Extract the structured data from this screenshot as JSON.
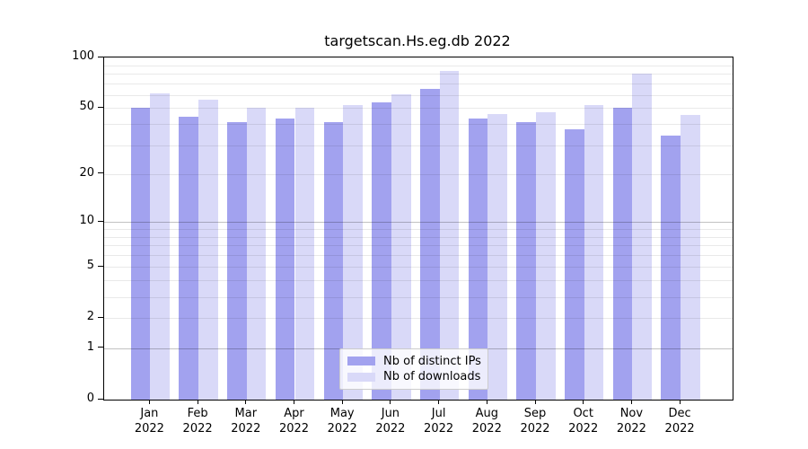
{
  "chart_data": {
    "type": "bar",
    "title": "targetscan.Hs.eg.db 2022",
    "yscale": "log1p",
    "ylim": [
      0,
      100
    ],
    "grid": true,
    "legend_position": "bottom-center",
    "categories": [
      "Jan",
      "Feb",
      "Mar",
      "Apr",
      "May",
      "Jun",
      "Jul",
      "Aug",
      "Sep",
      "Oct",
      "Nov",
      "Dec"
    ],
    "year_label": "2022",
    "series": [
      {
        "name": "Nb of distinct IPs",
        "color": "#a2a2ef",
        "values": [
          50,
          44,
          41,
          43,
          41,
          54,
          65,
          43,
          41,
          37,
          50,
          34
        ]
      },
      {
        "name": "Nb of downloads",
        "color": "#d9d9f8",
        "values": [
          61,
          56,
          50,
          50,
          52,
          60,
          83,
          46,
          47,
          52,
          80,
          45
        ]
      }
    ],
    "y_ticks": [
      100,
      50,
      20,
      10,
      5,
      2,
      1,
      0
    ],
    "grid_minor": [
      2,
      3,
      4,
      5,
      6,
      7,
      8,
      9,
      20,
      30,
      40,
      50,
      60,
      70,
      80,
      90
    ],
    "grid_major": [
      1,
      10
    ],
    "colors": {
      "axis": "#000000",
      "grid_minor": "rgba(0,0,0,0.085)",
      "grid_major": "rgba(0,0,0,0.24)",
      "legend_border": "#cccccc"
    }
  }
}
